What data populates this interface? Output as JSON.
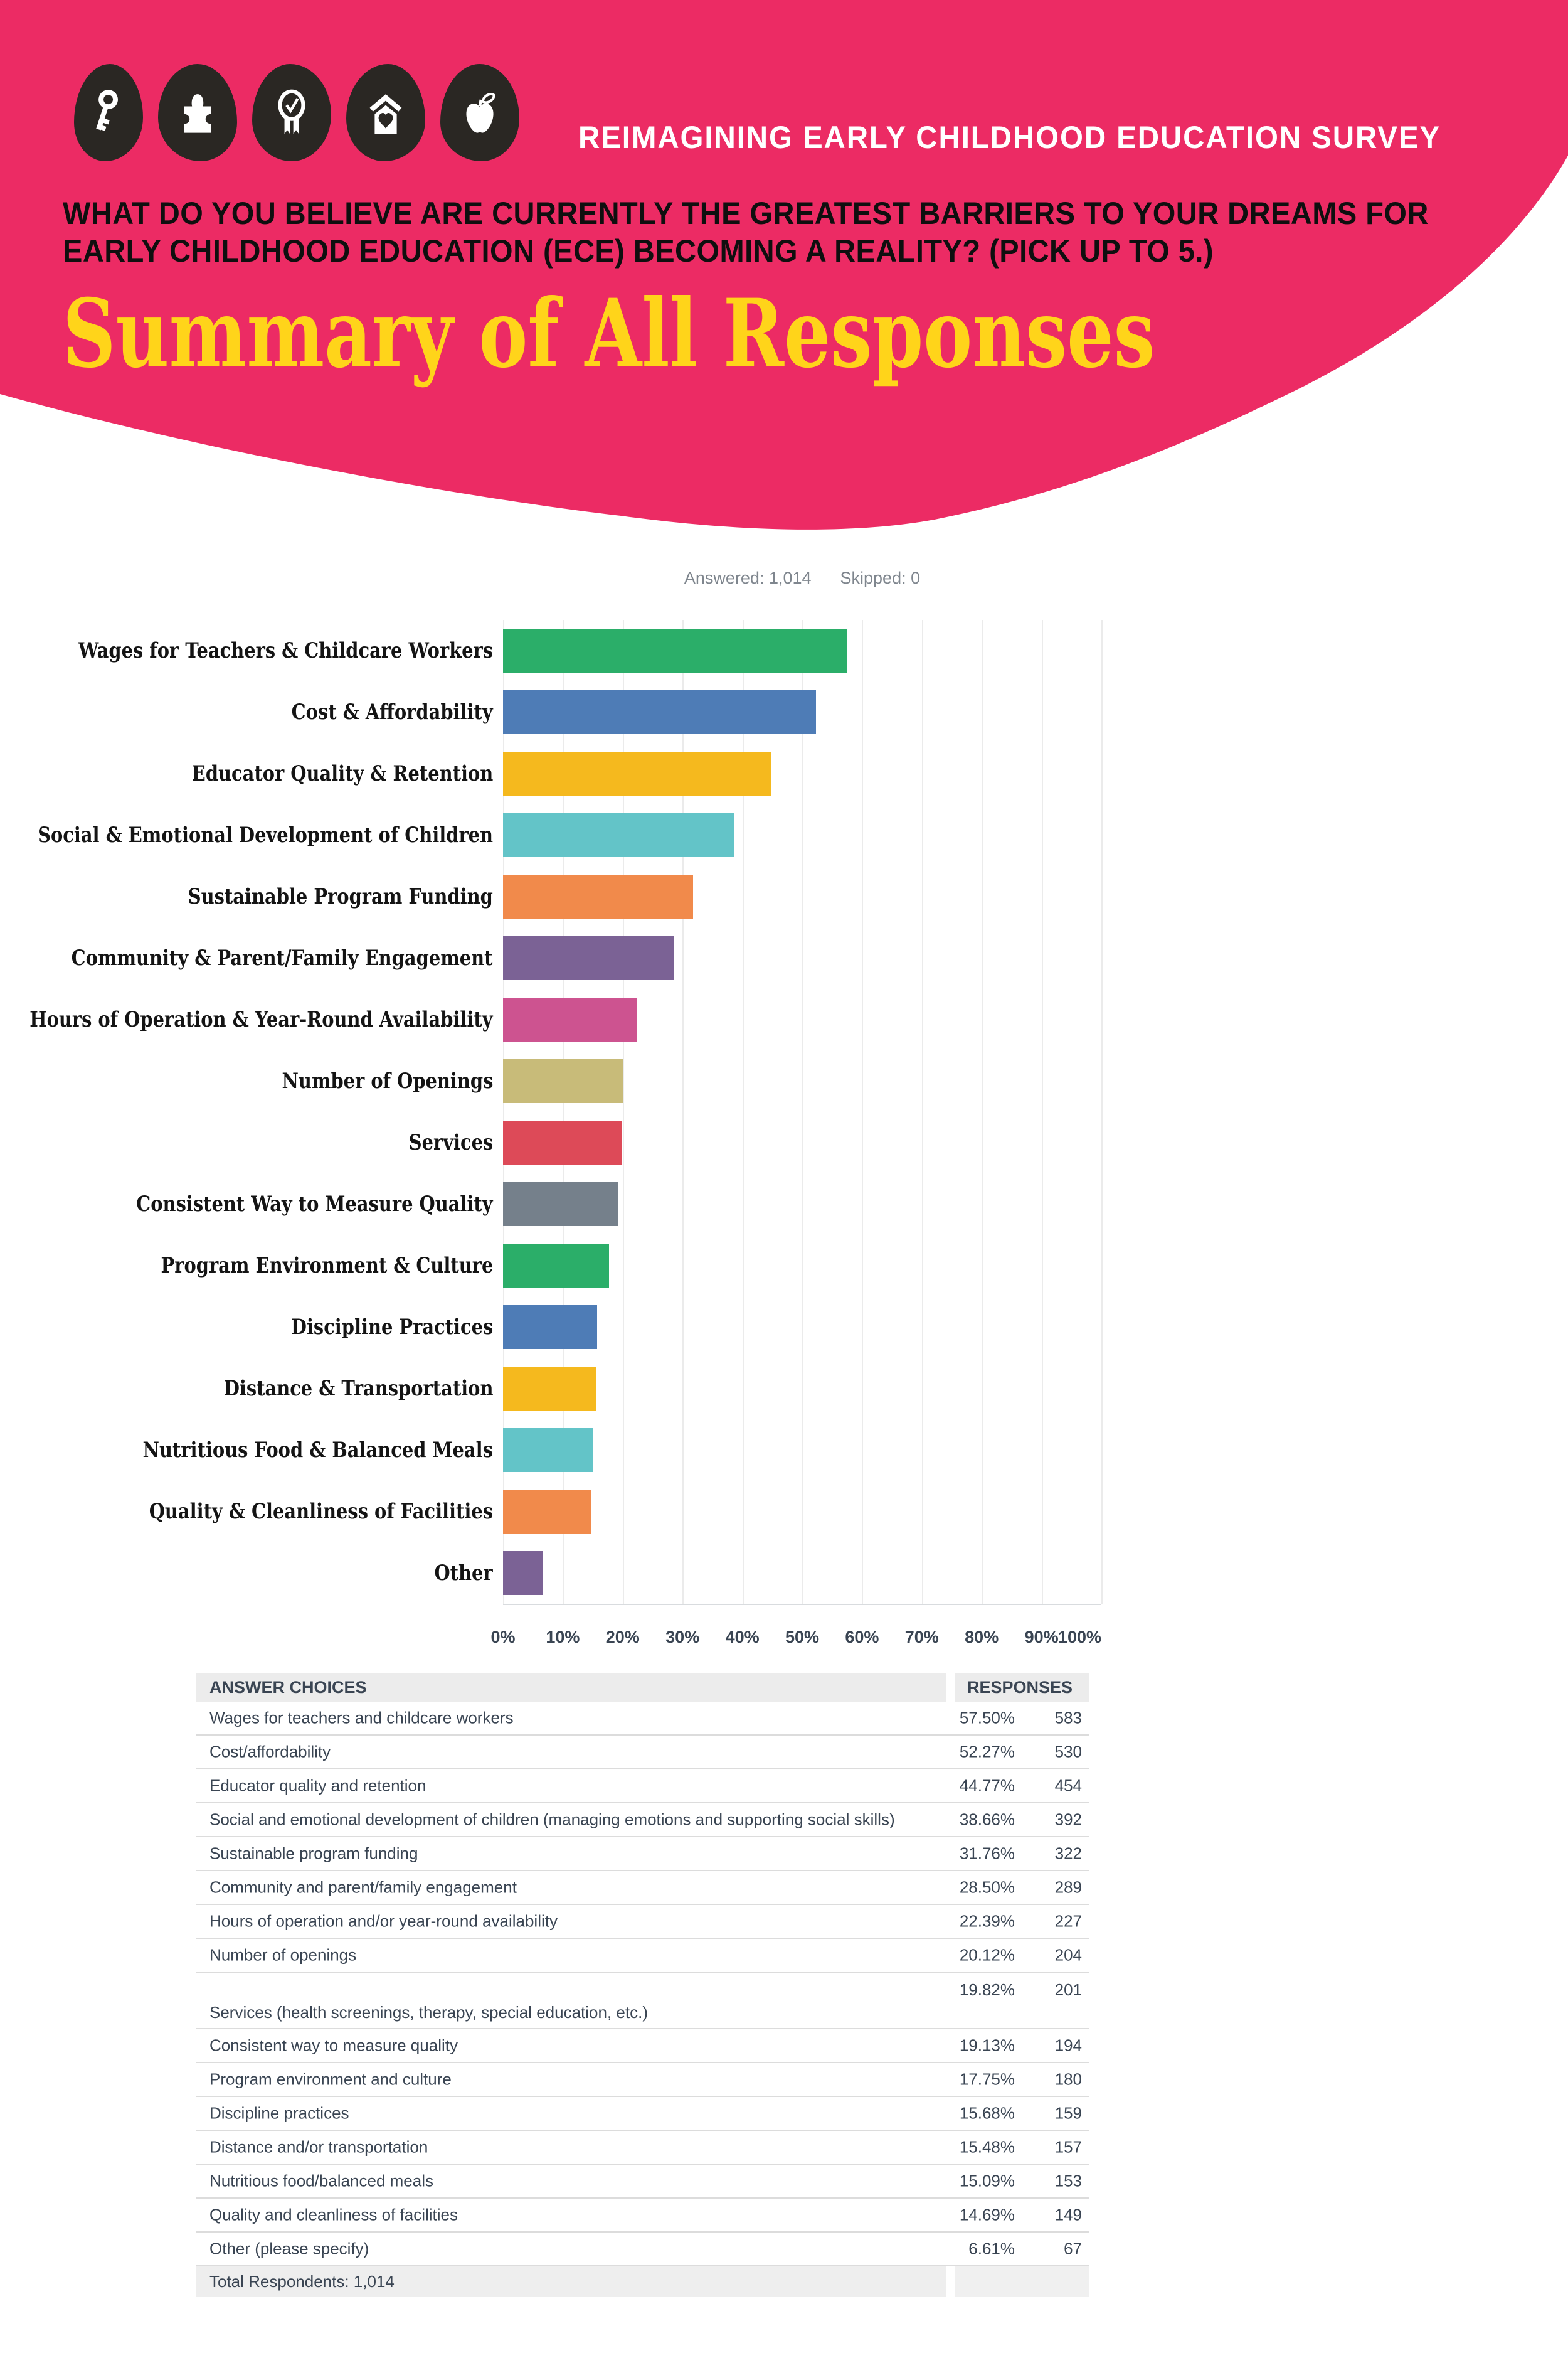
{
  "header": {
    "brand": "REIMAGINING EARLY CHILDHOOD EDUCATION SURVEY",
    "question_lines": [
      "WHAT DO YOU BELIEVE ARE CURRENTLY THE GREATEST BARRIERS TO YOUR DREAMS FOR",
      "EARLY CHILDHOOD EDUCATION (ECE) BECOMING A REALITY? (PICK UP TO 5.)"
    ],
    "subtitle": "Summary of All Responses",
    "icons": [
      "key-icon",
      "puzzle-icon",
      "award-ribbon-icon",
      "house-heart-icon",
      "apple-icon"
    ],
    "colors": {
      "pink": "#EC2B64",
      "icon_bg": "#2A2723",
      "subtitle_yellow": "#FFD41A",
      "question_black": "#0F0F0F",
      "brand_white": "#FFFFFF"
    }
  },
  "stats": {
    "answered_label": "Answered: 1,014",
    "skipped_label": "Skipped: 0"
  },
  "chart_data": {
    "type": "bar",
    "orientation": "horizontal",
    "title": "",
    "xlabel": "",
    "ylabel": "",
    "xlim": [
      0,
      100
    ],
    "grid": true,
    "x_ticks": [
      "0%",
      "10%",
      "20%",
      "30%",
      "40%",
      "50%",
      "60%",
      "70%",
      "80%",
      "90%",
      "100%"
    ],
    "categories": [
      "Wages for Teachers & Childcare Workers",
      "Cost & Affordability",
      "Educator Quality & Retention",
      "Social & Emotional Development of Children",
      "Sustainable Program Funding",
      "Community & Parent/Family Engagement",
      "Hours of Operation & Year-Round Availability",
      "Number of Openings",
      "Services",
      "Consistent Way to Measure Quality",
      "Program Environment & Culture",
      "Discipline Practices",
      "Distance & Transportation",
      "Nutritious Food & Balanced Meals",
      "Quality & Cleanliness of Facilities",
      "Other"
    ],
    "values": [
      57.5,
      52.27,
      44.77,
      38.66,
      31.76,
      28.5,
      22.39,
      20.12,
      19.82,
      19.13,
      17.75,
      15.68,
      15.48,
      15.09,
      14.69,
      6.61
    ],
    "bar_colors": [
      "#2BAE69",
      "#4E7CB6",
      "#F5B91E",
      "#63C4C8",
      "#F18A4B",
      "#7B6295",
      "#CD5390",
      "#C8BB79",
      "#DD4A58",
      "#75808B",
      "#2BAE69",
      "#4E7CB6",
      "#F5B91E",
      "#63C4C8",
      "#F18A4B",
      "#7B6295"
    ]
  },
  "table": {
    "col1_header": "ANSWER CHOICES",
    "col2_header": "RESPONSES",
    "rows": [
      {
        "label": "Wages for teachers and childcare workers",
        "pct": "57.50%",
        "count": "583",
        "tall": false
      },
      {
        "label": "Cost/affordability",
        "pct": "52.27%",
        "count": "530",
        "tall": false
      },
      {
        "label": "Educator quality and retention",
        "pct": "44.77%",
        "count": "454",
        "tall": false
      },
      {
        "label": "Social and emotional development of children (managing emotions and supporting social skills)",
        "pct": "38.66%",
        "count": "392",
        "tall": false
      },
      {
        "label": "Sustainable program funding",
        "pct": "31.76%",
        "count": "322",
        "tall": false
      },
      {
        "label": "Community and parent/family engagement",
        "pct": "28.50%",
        "count": "289",
        "tall": false
      },
      {
        "label": "Hours of operation and/or year-round availability",
        "pct": "22.39%",
        "count": "227",
        "tall": false
      },
      {
        "label": "Number of openings",
        "pct": "20.12%",
        "count": "204",
        "tall": false
      },
      {
        "label": "Services (health screenings, therapy, special education, etc.)",
        "pct": "19.82%",
        "count": "201",
        "tall": true
      },
      {
        "label": "Consistent way to measure quality",
        "pct": "19.13%",
        "count": "194",
        "tall": false
      },
      {
        "label": "Program environment and culture",
        "pct": "17.75%",
        "count": "180",
        "tall": false
      },
      {
        "label": "Discipline practices",
        "pct": "15.68%",
        "count": "159",
        "tall": false
      },
      {
        "label": "Distance and/or transportation",
        "pct": "15.48%",
        "count": "157",
        "tall": false
      },
      {
        "label": "Nutritious food/balanced meals",
        "pct": "15.09%",
        "count": "153",
        "tall": false
      },
      {
        "label": "Quality and cleanliness of facilities",
        "pct": "14.69%",
        "count": "149",
        "tall": false
      },
      {
        "label": "Other (please specify)",
        "pct": "6.61%",
        "count": "67",
        "tall": false
      }
    ],
    "footer": "Total Respondents: 1,014"
  }
}
